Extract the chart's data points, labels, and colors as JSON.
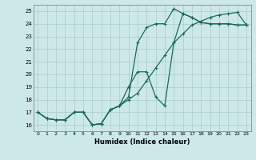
{
  "xlabel": "Humidex (Indice chaleur)",
  "xlim": [
    -0.5,
    23.5
  ],
  "ylim": [
    15.5,
    25.5
  ],
  "xticks": [
    0,
    1,
    2,
    3,
    4,
    5,
    6,
    7,
    8,
    9,
    10,
    11,
    12,
    13,
    14,
    15,
    16,
    17,
    18,
    19,
    20,
    21,
    22,
    23
  ],
  "yticks": [
    16,
    17,
    18,
    19,
    20,
    21,
    22,
    23,
    24,
    25
  ],
  "background_color": "#cce8e8",
  "grid_color": "#aacccc",
  "line_color": "#1a6b5a",
  "line1_x": [
    0,
    1,
    2,
    3,
    4,
    5,
    6,
    7,
    8,
    9,
    10,
    11,
    12,
    13,
    14,
    15,
    16,
    17,
    18,
    19,
    20,
    21,
    22,
    23
  ],
  "line1_y": [
    17.0,
    16.5,
    16.4,
    16.4,
    17.0,
    17.0,
    16.0,
    16.1,
    17.2,
    17.5,
    18.2,
    22.5,
    23.7,
    24.0,
    24.0,
    25.2,
    24.8,
    24.5,
    24.1,
    24.0,
    24.0,
    24.0,
    23.9,
    23.9
  ],
  "line2_x": [
    0,
    1,
    2,
    3,
    4,
    5,
    6,
    7,
    8,
    9,
    10,
    11,
    12,
    13,
    14,
    15,
    16,
    17,
    18,
    19,
    20,
    21,
    22,
    23
  ],
  "line2_y": [
    17.0,
    16.5,
    16.4,
    16.4,
    17.0,
    17.0,
    16.0,
    16.1,
    17.2,
    17.5,
    19.0,
    20.2,
    20.2,
    18.2,
    17.5,
    22.5,
    24.8,
    24.5,
    24.1,
    24.0,
    24.0,
    24.0,
    23.9,
    23.9
  ],
  "line3_x": [
    0,
    1,
    2,
    3,
    4,
    5,
    6,
    7,
    8,
    9,
    10,
    11,
    12,
    13,
    14,
    15,
    16,
    17,
    18,
    19,
    20,
    21,
    22,
    23
  ],
  "line3_y": [
    17.0,
    16.5,
    16.4,
    16.4,
    17.0,
    17.0,
    16.0,
    16.1,
    17.2,
    17.5,
    18.0,
    18.5,
    19.5,
    20.5,
    21.5,
    22.5,
    23.2,
    23.9,
    24.2,
    24.5,
    24.7,
    24.8,
    24.9,
    23.9
  ]
}
